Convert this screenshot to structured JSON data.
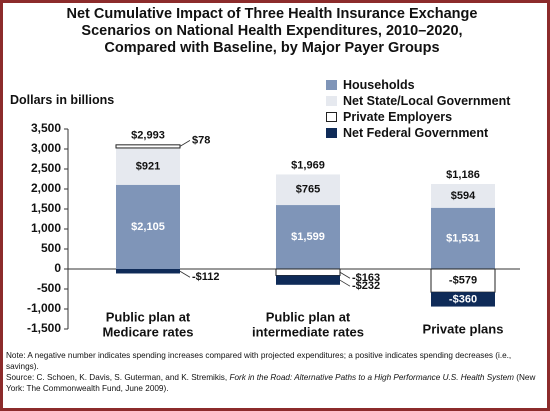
{
  "title_lines": [
    "Net Cumulative Impact of Three Health Insurance Exchange",
    "Scenarios on National Health Expenditures, 2010–2020,",
    "Compared with Baseline, by Major Payer Groups"
  ],
  "y_caption": "Dollars in billions",
  "note": "Note: A negative number indicates spending increases compared with projected expenditures; a positive indicates spending decreases (i.e., savings).",
  "source": {
    "prefix": "Source: C. Schoen, K. Davis, S. Guterman, and K. Stremikis, ",
    "title": "Fork in the Road: Alternative Paths to a High Performance U.S. Health System",
    "suffix": " (New York: The Commonwealth Fund, June 2009)."
  },
  "colors": {
    "households": "#7f95b8",
    "state_local": "#e6e9ef",
    "private_employers": "#ffffff",
    "federal": "#0f2b58",
    "frame": "#8c2b2b"
  },
  "chart_data": {
    "type": "bar",
    "stacked": true,
    "categories": [
      "Public plan at\nMedicare rates",
      "Public plan at\nintermediate rates",
      "Private plans"
    ],
    "series": [
      {
        "name": "Households",
        "values": [
          2105,
          1599,
          1531
        ],
        "labels": [
          "$2,105",
          "$1,599",
          "$1,531"
        ]
      },
      {
        "name": "Net State/Local Government",
        "values": [
          921,
          765,
          594
        ],
        "labels": [
          "$921",
          "$765",
          "$594"
        ]
      },
      {
        "name": "Private Employers",
        "values": [
          78,
          -163,
          -579
        ],
        "labels": [
          "$78",
          "-$163",
          "-$579"
        ]
      },
      {
        "name": "Net Federal Government",
        "values": [
          -112,
          -232,
          -360
        ],
        "labels": [
          "-$112",
          "-$232",
          "-$360"
        ]
      }
    ],
    "totals": [
      "$2,993",
      "$1,969",
      "$1,186"
    ],
    "ylim": [
      -1500,
      3500
    ],
    "yticks": [
      -1500,
      -1000,
      -500,
      0,
      500,
      1000,
      1500,
      2000,
      2500,
      3000,
      3500
    ],
    "ytick_labels": [
      "-1,500",
      "-1,000",
      "-500",
      "0",
      "500",
      "1,000",
      "1,500",
      "2,000",
      "2,500",
      "3,000",
      "3,500"
    ],
    "legend_position": "top-right",
    "grid": false
  }
}
